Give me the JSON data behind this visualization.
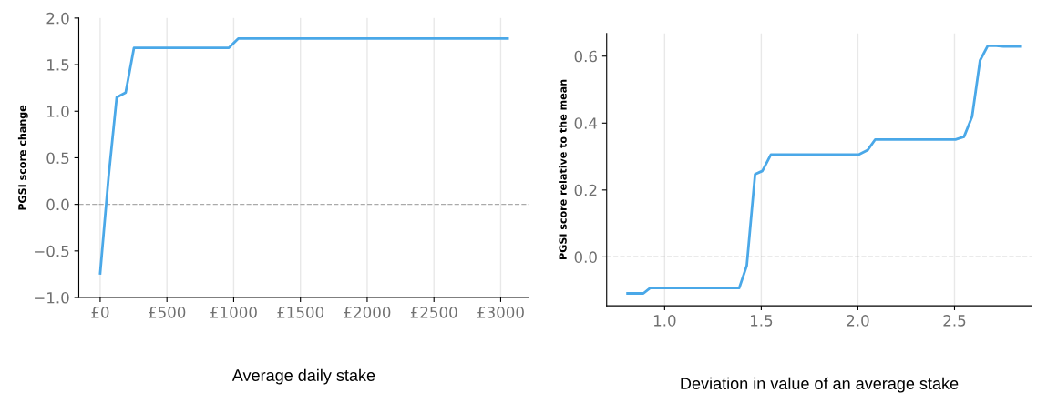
{
  "chart_data": [
    {
      "type": "line",
      "xlabel": "Average daily stake",
      "ylabel": "PGSI score change",
      "series": [
        {
          "color": "#4aa8e8",
          "x": [
            0,
            62,
            124,
            191,
            253,
            964,
            1034,
            3052
          ],
          "values": [
            -0.74,
            0.28,
            1.15,
            1.2,
            1.68,
            1.68,
            1.78,
            1.78
          ]
        }
      ],
      "xlim": [
        -160,
        3211
      ],
      "ylim": [
        -1.0,
        2.0
      ],
      "xticks": [
        {
          "value": 0,
          "label": "£0"
        },
        {
          "value": 500,
          "label": "£500"
        },
        {
          "value": 1000,
          "label": "£1000"
        },
        {
          "value": 1500,
          "label": "£1500"
        },
        {
          "value": 2000,
          "label": "£2000"
        },
        {
          "value": 2500,
          "label": "£2500"
        },
        {
          "value": 3000,
          "label": "£3000"
        }
      ],
      "yticks": [
        {
          "value": -1.0,
          "label": "−1.0"
        },
        {
          "value": -0.5,
          "label": "−0.5"
        },
        {
          "value": 0,
          "label": "0.0"
        },
        {
          "value": 0.5,
          "label": "0.5"
        },
        {
          "value": 1.0,
          "label": "1.0"
        },
        {
          "value": 1.5,
          "label": "1.5"
        },
        {
          "value": 2.0,
          "label": "2.0"
        }
      ],
      "grid": "x",
      "line_style": "solid",
      "marker": "none",
      "ref_lines": [
        {
          "axis": "y",
          "value": 0,
          "color": "#aaaaaa",
          "line_style": "dashed"
        }
      ]
    },
    {
      "type": "line",
      "xlabel": "Deviation in value of an average stake",
      "ylabel": "PGSI score relative to the mean",
      "series": [
        {
          "color": "#4aa8e8",
          "x": [
            0.808,
            0.89,
            0.925,
            1.386,
            1.425,
            1.468,
            1.506,
            1.55,
            2.006,
            2.05,
            2.09,
            2.505,
            2.549,
            2.591,
            2.632,
            2.672,
            2.716,
            2.753,
            2.838
          ],
          "values": [
            -0.109,
            -0.109,
            -0.093,
            -0.093,
            -0.026,
            0.247,
            0.257,
            0.306,
            0.306,
            0.319,
            0.351,
            0.351,
            0.359,
            0.419,
            0.587,
            0.631,
            0.631,
            0.629,
            0.629
          ]
        }
      ],
      "xlim": [
        0.7,
        2.9
      ],
      "ylim": [
        -0.146,
        0.668
      ],
      "xticks": [
        {
          "value": 1.0,
          "label": "1.0"
        },
        {
          "value": 1.5,
          "label": "1.5"
        },
        {
          "value": 2.0,
          "label": "2.0"
        },
        {
          "value": 2.5,
          "label": "2.5"
        }
      ],
      "yticks": [
        {
          "value": 0,
          "label": "0.0"
        },
        {
          "value": 0.2,
          "label": "0.2"
        },
        {
          "value": 0.4,
          "label": "0.4"
        },
        {
          "value": 0.6,
          "label": "0.6"
        }
      ],
      "grid": "x",
      "line_style": "solid",
      "marker": "none",
      "ref_lines": [
        {
          "axis": "y",
          "value": 0,
          "color": "#aaaaaa",
          "line_style": "dashed"
        }
      ]
    }
  ]
}
